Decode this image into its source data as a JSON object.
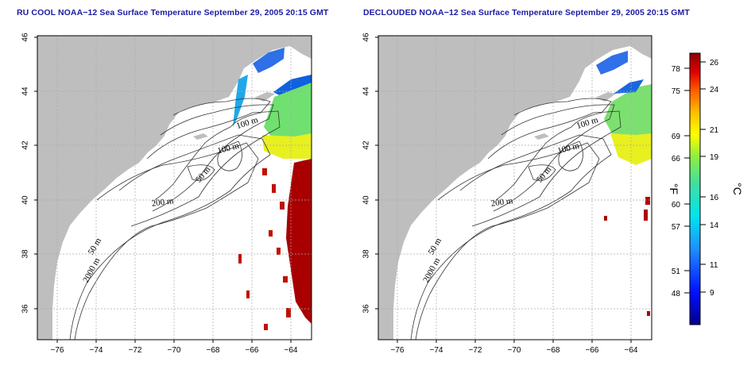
{
  "panels": [
    {
      "title": "RU COOL NOAA−12 Sea Surface Temperature September 29, 2005 20:15 GMT",
      "map_type": "raw"
    },
    {
      "title": "DECLOUDED NOAA−12 Sea Surface Temperature September 29, 2005 20:15 GMT",
      "map_type": "declouded"
    }
  ],
  "x_ticks": [
    "−76",
    "−74",
    "−72",
    "−70",
    "−68",
    "−66",
    "−64"
  ],
  "y_ticks": [
    "36",
    "38",
    "40",
    "42",
    "44",
    "46"
  ],
  "contour_labels": [
    "100 m",
    "100 m",
    "50 m",
    "200 m",
    "50 m",
    "2000 m"
  ],
  "colorbar": {
    "f_unit": "°F",
    "c_unit": "°C",
    "f_ticks": [
      "48",
      "51",
      "57",
      "60",
      "66",
      "69",
      "75",
      "78"
    ],
    "c_ticks": [
      "9",
      "11",
      "14",
      "16",
      "19",
      "21",
      "24",
      "26"
    ]
  },
  "colors": {
    "title": "#1a1aa6",
    "land": "#bebebe",
    "ocean": "#ffffff",
    "cold": "#0000a0",
    "warm": "#a00000"
  }
}
